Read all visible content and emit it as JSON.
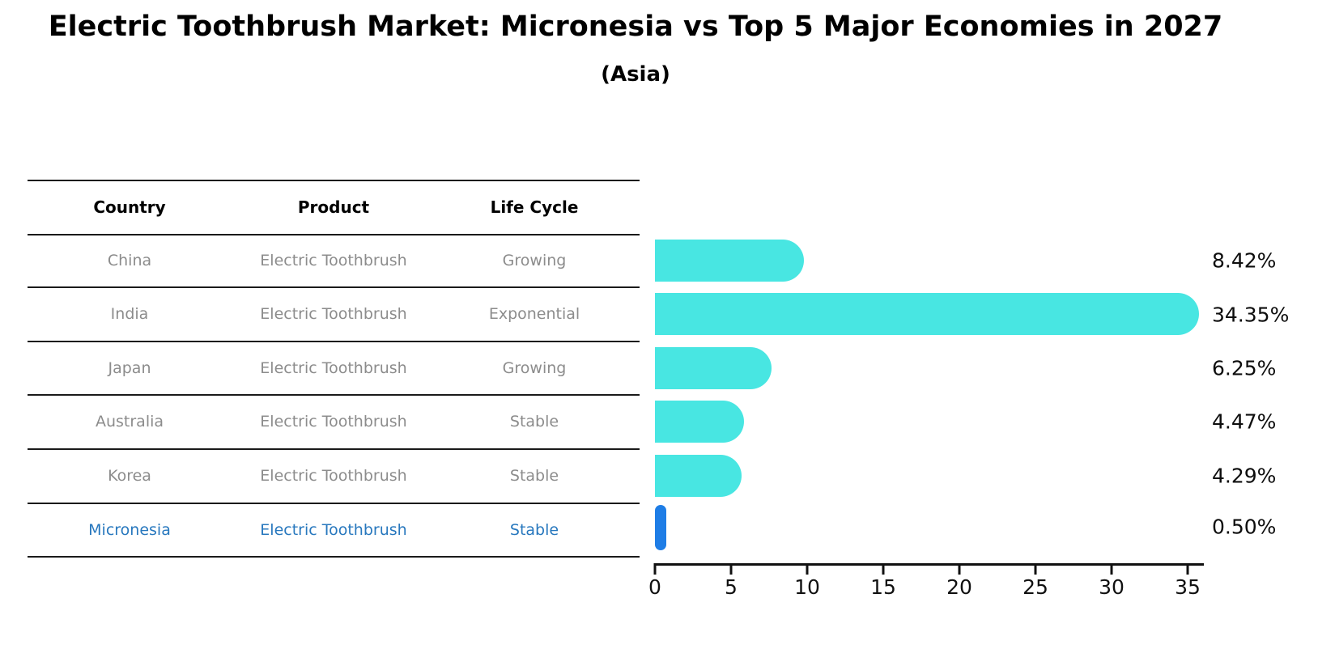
{
  "title": "Electric Toothbrush Market: Micronesia vs Top 5 Major Economies in 2027",
  "subtitle": "(Asia)",
  "table": {
    "headers": [
      "Country",
      "Product",
      "Life Cycle"
    ],
    "rows": [
      {
        "country": "China",
        "product": "Electric Toothbrush",
        "life_cycle": "Growing",
        "highlighted": false
      },
      {
        "country": "India",
        "product": "Electric Toothbrush",
        "life_cycle": "Exponential",
        "highlighted": false
      },
      {
        "country": "Japan",
        "product": "Electric Toothbrush",
        "life_cycle": "Growing",
        "highlighted": false
      },
      {
        "country": "Australia",
        "product": "Electric Toothbrush",
        "life_cycle": "Stable",
        "highlighted": false
      },
      {
        "country": "Korea",
        "product": "Electric Toothbrush",
        "life_cycle": "Stable",
        "highlighted": false
      },
      {
        "country": "Micronesia",
        "product": "Electric Toothbrush",
        "life_cycle": "Stable",
        "highlighted": true
      }
    ]
  },
  "chart_data": {
    "type": "bar",
    "orientation": "horizontal",
    "categories": [
      "China",
      "India",
      "Japan",
      "Australia",
      "Korea",
      "Micronesia"
    ],
    "values": [
      8.42,
      34.35,
      6.25,
      4.47,
      4.29,
      0.5
    ],
    "value_labels": [
      "8.42%",
      "34.35%",
      "6.25%",
      "4.47%",
      "4.29%",
      "0.50%"
    ],
    "title": "Electric Toothbrush Market: Micronesia vs Top 5 Major Economies in 2027",
    "subtitle": "(Asia)",
    "xlabel": "",
    "ylabel": "",
    "xlim": [
      0,
      35
    ],
    "xticks": [
      0,
      5,
      10,
      15,
      20,
      25,
      30,
      35
    ],
    "xtick_labels": [
      "0",
      "5",
      "10",
      "15",
      "20",
      "25",
      "30",
      "35"
    ],
    "grid": false,
    "legend": false,
    "bar_color": "#48E6E2",
    "highlight_color": "#1E7DE6",
    "highlight_index": 5
  },
  "colors": {
    "bar_cyan": "#48E6E2",
    "highlight_blue": "#1E7DE6",
    "table_text_gray": "#8c8c8c",
    "highlight_text_blue": "#2878BE",
    "rule_black": "#1a1a1a"
  }
}
